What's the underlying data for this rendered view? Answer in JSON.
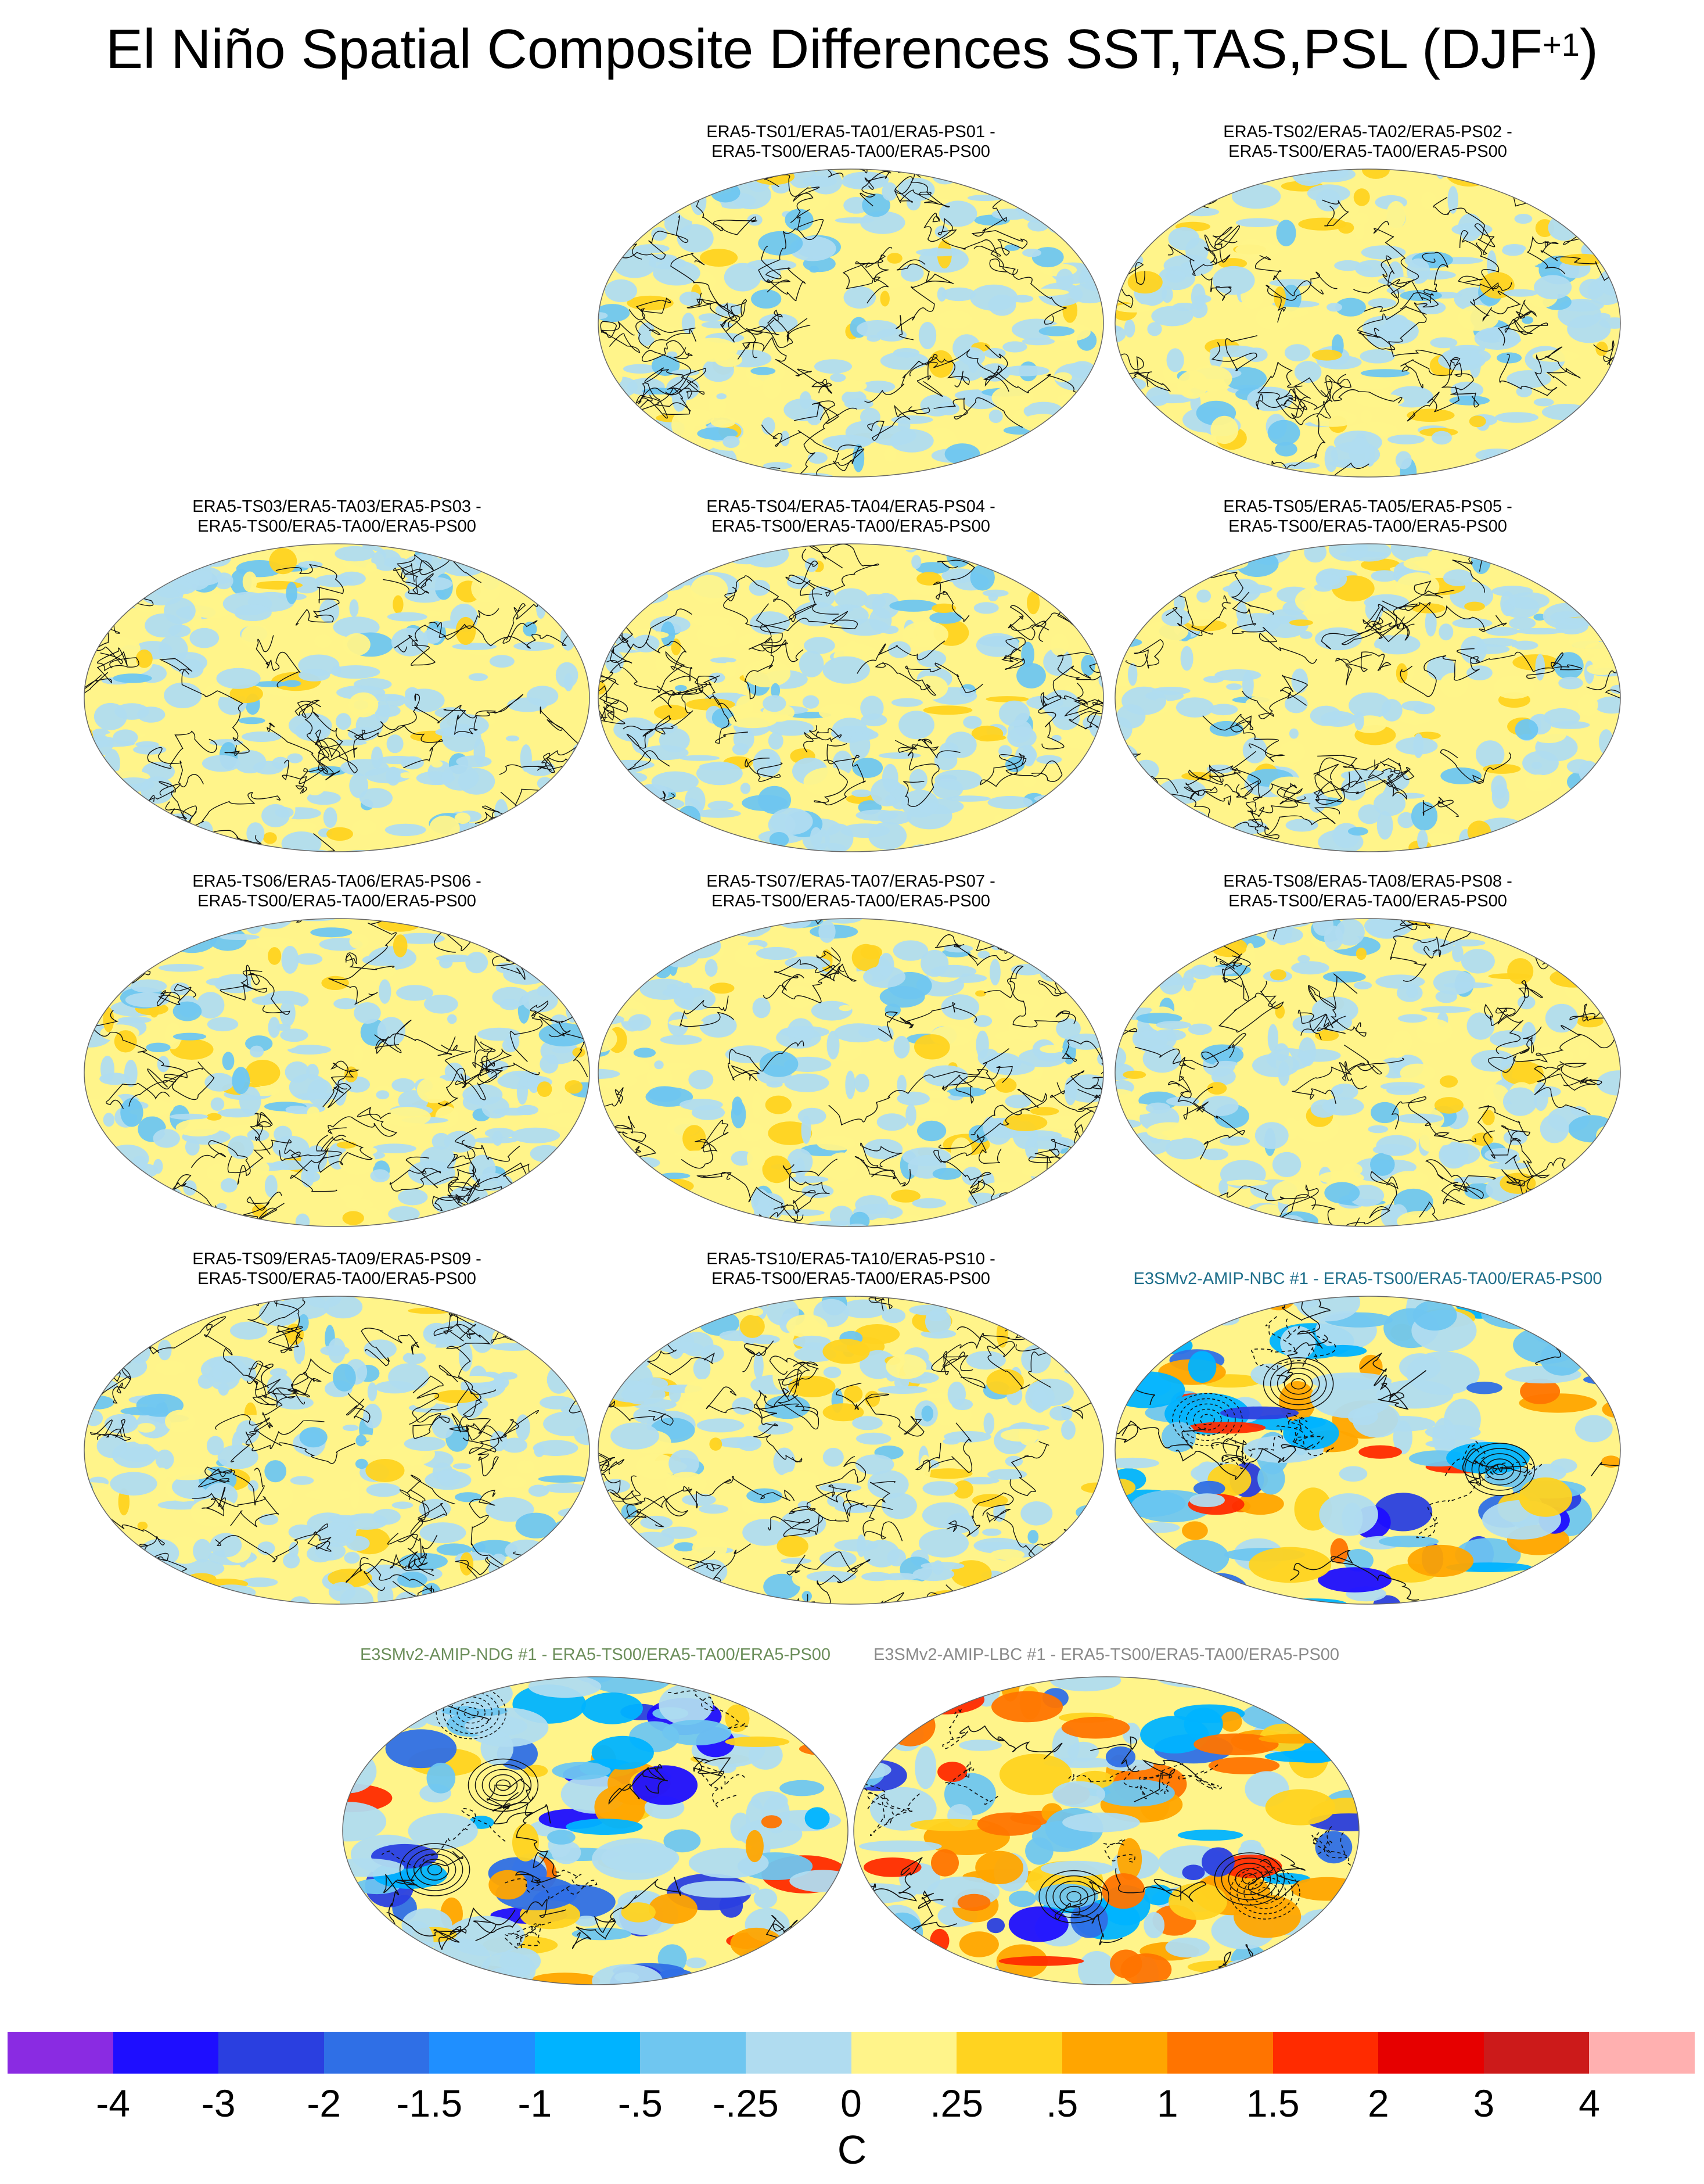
{
  "figure": {
    "title_main": "El Niño Spatial Composite Differences SST,TAS,PSL (DJF",
    "title_sup": "+1",
    "title_end": ")"
  },
  "panels": [
    {
      "id": "ts01",
      "line1": "ERA5-TS01/ERA5-TA01/ERA5-PS01 -",
      "line2": "ERA5-TS00/ERA5-TA00/ERA5-PS00",
      "style": "obs"
    },
    {
      "id": "ts02",
      "line1": "ERA5-TS02/ERA5-TA02/ERA5-PS02 -",
      "line2": "ERA5-TS00/ERA5-TA00/ERA5-PS00",
      "style": "obs"
    },
    {
      "id": "ts03",
      "line1": "ERA5-TS03/ERA5-TA03/ERA5-PS03 -",
      "line2": "ERA5-TS00/ERA5-TA00/ERA5-PS00",
      "style": "obs"
    },
    {
      "id": "ts04",
      "line1": "ERA5-TS04/ERA5-TA04/ERA5-PS04 -",
      "line2": "ERA5-TS00/ERA5-TA00/ERA5-PS00",
      "style": "obs"
    },
    {
      "id": "ts05",
      "line1": "ERA5-TS05/ERA5-TA05/ERA5-PS05 -",
      "line2": "ERA5-TS00/ERA5-TA00/ERA5-PS00",
      "style": "obs"
    },
    {
      "id": "ts06",
      "line1": "ERA5-TS06/ERA5-TA06/ERA5-PS06 -",
      "line2": "ERA5-TS00/ERA5-TA00/ERA5-PS00",
      "style": "obs"
    },
    {
      "id": "ts07",
      "line1": "ERA5-TS07/ERA5-TA07/ERA5-PS07 -",
      "line2": "ERA5-TS00/ERA5-TA00/ERA5-PS00",
      "style": "obs"
    },
    {
      "id": "ts08",
      "line1": "ERA5-TS08/ERA5-TA08/ERA5-PS08 -",
      "line2": "ERA5-TS00/ERA5-TA00/ERA5-PS00",
      "style": "obs"
    },
    {
      "id": "ts09",
      "line1": "ERA5-TS09/ERA5-TA09/ERA5-PS09 -",
      "line2": "ERA5-TS00/ERA5-TA00/ERA5-PS00",
      "style": "obs"
    },
    {
      "id": "ts10",
      "line1": "ERA5-TS10/ERA5-TA10/ERA5-PS10 -",
      "line2": "ERA5-TS00/ERA5-TA00/ERA5-PS00",
      "style": "obs"
    },
    {
      "id": "nbc",
      "line1": "E3SMv2-AMIP-NBC #1 - ERA5-TS00/ERA5-TA00/ERA5-PS00",
      "line2": "",
      "style": "model",
      "title_color": "#1f6f8b"
    },
    {
      "id": "ndg",
      "line1": "E3SMv2-AMIP-NDG #1 - ERA5-TS00/ERA5-TA00/ERA5-PS00",
      "line2": "",
      "style": "model",
      "title_color": "#6b8e5a"
    },
    {
      "id": "lbc",
      "line1": "E3SMv2-AMIP-LBC #1 - ERA5-TS00/ERA5-TA00/ERA5-PS00",
      "line2": "",
      "style": "model",
      "title_color": "#8a8a8a"
    }
  ],
  "colorbar": {
    "unit": "C",
    "colors": [
      "#8a2be2",
      "#1e0eff",
      "#2a3fe0",
      "#2f6fe6",
      "#1f8fff",
      "#00b3ff",
      "#6fc6f0",
      "#b0dcf0",
      "#fff48a",
      "#ffd320",
      "#ffa500",
      "#ff7400",
      "#ff2b00",
      "#e60000",
      "#cc1a1a",
      "#ffb0b0"
    ],
    "labels": [
      "-4",
      "-3",
      "-2",
      "-1.5",
      "-1",
      "-.5",
      "-.25",
      "0",
      ".25",
      ".5",
      "1",
      "1.5",
      "2",
      "3",
      "4"
    ]
  }
}
